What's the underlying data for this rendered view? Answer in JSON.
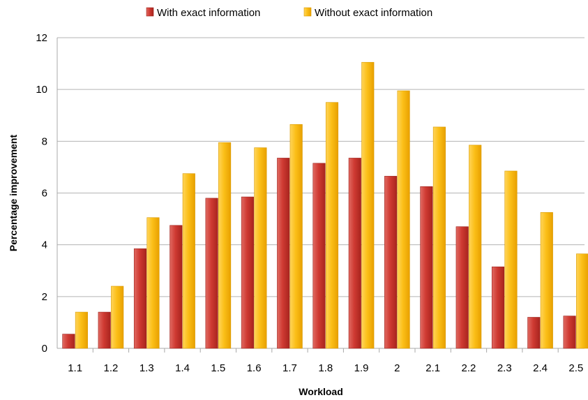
{
  "chart_data": {
    "type": "bar",
    "categories": [
      "1.1",
      "1.2",
      "1.3",
      "1.4",
      "1.5",
      "1.6",
      "1.7",
      "1.8",
      "1.9",
      "2",
      "2.1",
      "2.2",
      "2.3",
      "2.4",
      "2.5"
    ],
    "series": [
      {
        "name": "With exact information",
        "color": "#c8302a",
        "values": [
          0.55,
          1.4,
          3.85,
          4.75,
          5.8,
          5.85,
          7.35,
          7.15,
          7.35,
          6.65,
          6.25,
          4.7,
          3.15,
          1.2,
          1.25
        ]
      },
      {
        "name": "Without exact information",
        "color": "#f5b000",
        "values": [
          1.4,
          2.4,
          5.05,
          6.75,
          7.95,
          7.75,
          8.65,
          9.5,
          11.05,
          9.95,
          8.55,
          7.85,
          6.85,
          5.25,
          3.65
        ]
      }
    ],
    "title": "",
    "xlabel": "Workload",
    "ylabel": "Percentage improvement",
    "ylim": [
      0,
      12
    ],
    "yticks": [
      "0",
      "2",
      "4",
      "6",
      "8",
      "10",
      "12"
    ],
    "grid": true,
    "legend_position": "top"
  }
}
